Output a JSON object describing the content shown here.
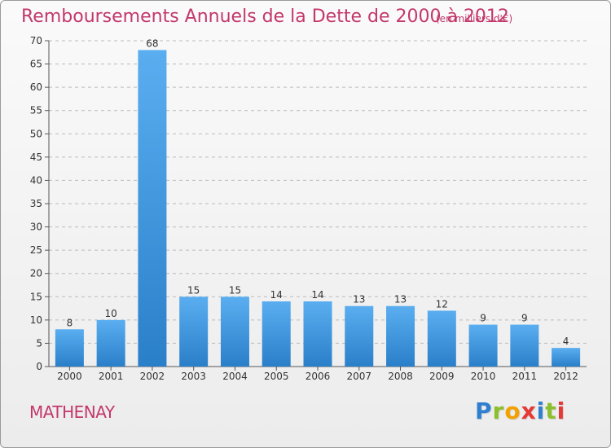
{
  "header": {
    "title": "Remboursements Annuels de la Dette de 2000 à 2012",
    "unit": "(en milliers d'€)"
  },
  "footer": {
    "commune": "MATHENAY",
    "brand": [
      "P",
      "r",
      "o",
      "x",
      "i",
      "t",
      "i"
    ],
    "brand_colors": [
      "#2f7fd1",
      "#8bbf2c",
      "#f2a100",
      "#e53935",
      "#2f7fd1",
      "#8bbf2c",
      "#e53935"
    ]
  },
  "colors": {
    "accent": "#c3386b",
    "bar_top": "#5aaef0",
    "bar_bottom": "#2a7fc9"
  },
  "chart_data": {
    "type": "bar",
    "title": "Remboursements Annuels de la Dette de 2000 à 2012",
    "categories": [
      "2000",
      "2001",
      "2002",
      "2003",
      "2004",
      "2005",
      "2006",
      "2007",
      "2008",
      "2009",
      "2010",
      "2011",
      "2012"
    ],
    "values": [
      8,
      10,
      68,
      15,
      15,
      14,
      14,
      13,
      13,
      12,
      9,
      9,
      4
    ],
    "yticks": [
      0,
      5,
      10,
      15,
      20,
      25,
      30,
      35,
      40,
      45,
      50,
      55,
      60,
      65,
      70
    ],
    "ylim": [
      0,
      70
    ],
    "grid": "dashed horizontal"
  }
}
